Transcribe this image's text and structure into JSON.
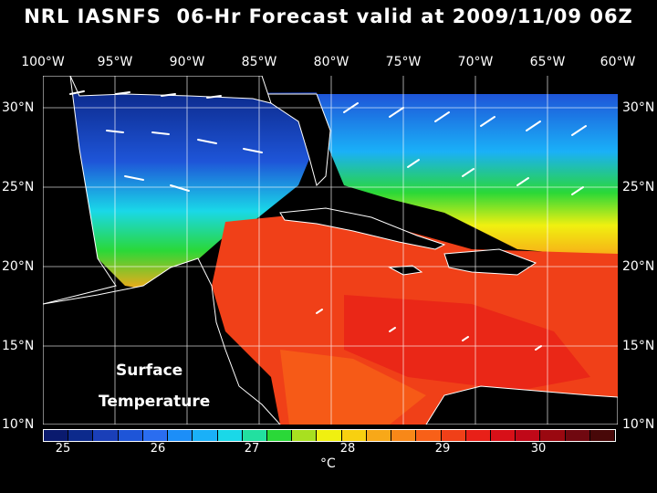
{
  "title": "NRL IASNFS  06-Hr Forecast valid at 2009/11/09 06Z",
  "longitude_labels": [
    "100°W",
    "95°W",
    "90°W",
    "85°W",
    "80°W",
    "75°W",
    "70°W",
    "65°W",
    "60°W"
  ],
  "latitude_labels": [
    "30°N",
    "25°N",
    "20°N",
    "15°N",
    "10°N"
  ],
  "overlay": {
    "line1": "Surface",
    "line2": "Temperature"
  },
  "colorbar": {
    "ticks": [
      "25",
      "26",
      "27",
      "28",
      "29",
      "30"
    ],
    "unit": "°C",
    "colors": [
      "#0a1a6e",
      "#0c2a8c",
      "#1a3fb8",
      "#1e55d8",
      "#2a6df0",
      "#1c8ef8",
      "#1ab0f8",
      "#1ad8e8",
      "#22e0a0",
      "#2ad838",
      "#a8e020",
      "#f0f010",
      "#f8d010",
      "#f8a818",
      "#f88818",
      "#f86018",
      "#f04018",
      "#e82018",
      "#d81018",
      "#c00818",
      "#9a0810",
      "#700810",
      "#480808"
    ]
  },
  "map": {
    "lon_range": [
      -100,
      -60
    ],
    "lat_range": [
      10,
      31
    ],
    "grid_lons": [
      -100,
      -95,
      -90,
      -85,
      -80,
      -75,
      -70,
      -65,
      -60
    ],
    "grid_lats": [
      30,
      25,
      20,
      15,
      10
    ]
  }
}
